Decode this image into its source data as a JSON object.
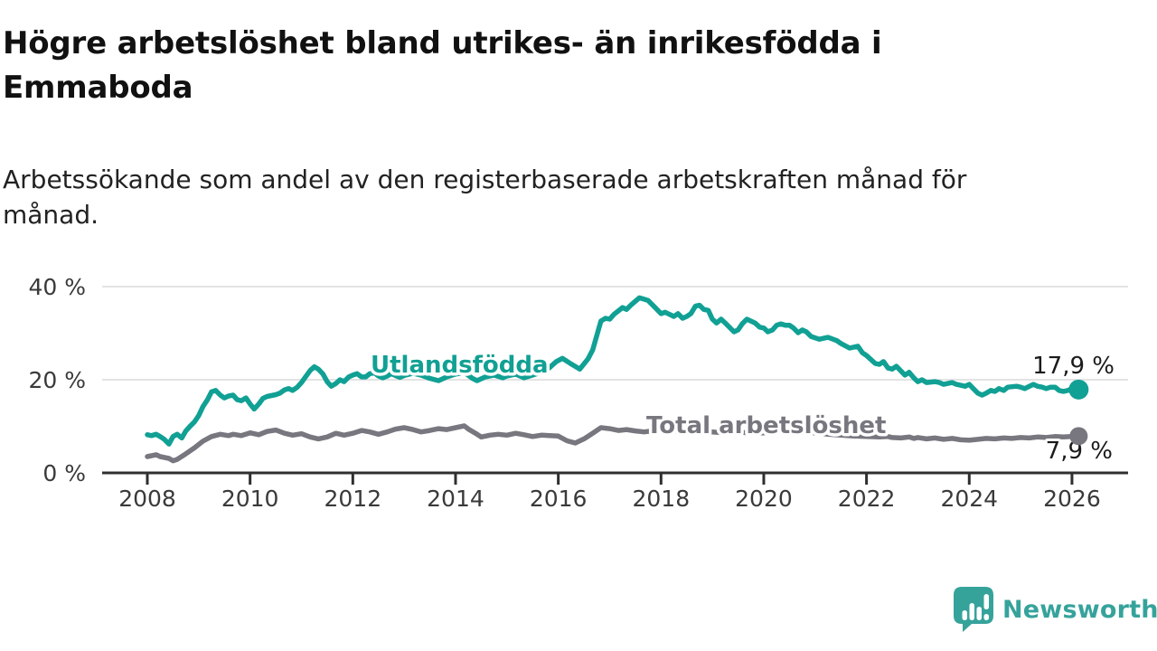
{
  "header": {
    "title_line1": "Högre arbetslöshet bland utrikes- än inrikesfödda i",
    "title_line2": "Emmaboda",
    "subtitle_line1": "Arbetssökande som andel av den registerbaserade arbetskraften månad för",
    "subtitle_line2": "månad."
  },
  "footer": {
    "brand": "Newsworthy",
    "logo_color": "#36A39B"
  },
  "chart_data": {
    "type": "line",
    "title": "Högre arbetslöshet bland utrikes- än inrikesfödda i Emmaboda",
    "subtitle": "Arbetssökande som andel av den registerbaserade arbetskraften månad för månad.",
    "grid": "horizontal",
    "legend_position": "inline-labels",
    "ylim": [
      0,
      44
    ],
    "xlim": [
      2007.1,
      2027.1
    ],
    "yticks": [
      0,
      20,
      40
    ],
    "ytick_labels": [
      "0 %",
      "20 %",
      "40 %"
    ],
    "xticks": [
      2008,
      2010,
      2012,
      2014,
      2016,
      2018,
      2020,
      2022,
      2024,
      2026
    ],
    "axis_color": "#2f2f2f",
    "gridline_color": "#e3e3e3",
    "tick_label_color": "#3a3a3a",
    "end_label_color": "#1b1b1b",
    "series": [
      {
        "name": "Utlandsfödda",
        "color": "#11A094",
        "end_label": "17,9 %",
        "end_value": 17.9,
        "points": [
          [
            2008.0,
            8.2
          ],
          [
            2008.08,
            8.0
          ],
          [
            2008.17,
            8.3
          ],
          [
            2008.25,
            7.8
          ],
          [
            2008.33,
            7.2
          ],
          [
            2008.42,
            6.2
          ],
          [
            2008.5,
            7.8
          ],
          [
            2008.58,
            8.3
          ],
          [
            2008.67,
            7.5
          ],
          [
            2008.75,
            9.0
          ],
          [
            2008.83,
            10.0
          ],
          [
            2008.92,
            11.0
          ],
          [
            2009.0,
            12.3
          ],
          [
            2009.08,
            14.2
          ],
          [
            2009.17,
            15.7
          ],
          [
            2009.25,
            17.4
          ],
          [
            2009.33,
            17.7
          ],
          [
            2009.42,
            16.7
          ],
          [
            2009.5,
            16.1
          ],
          [
            2009.58,
            16.5
          ],
          [
            2009.67,
            16.7
          ],
          [
            2009.75,
            15.7
          ],
          [
            2009.83,
            15.5
          ],
          [
            2009.92,
            16.1
          ],
          [
            2010.0,
            14.8
          ],
          [
            2010.08,
            13.7
          ],
          [
            2010.17,
            14.8
          ],
          [
            2010.25,
            16.0
          ],
          [
            2010.33,
            16.4
          ],
          [
            2010.5,
            16.8
          ],
          [
            2010.58,
            17.1
          ],
          [
            2010.67,
            17.8
          ],
          [
            2010.75,
            18.1
          ],
          [
            2010.83,
            17.7
          ],
          [
            2010.92,
            18.4
          ],
          [
            2011.0,
            19.4
          ],
          [
            2011.08,
            20.6
          ],
          [
            2011.17,
            22.0
          ],
          [
            2011.25,
            22.8
          ],
          [
            2011.33,
            22.3
          ],
          [
            2011.42,
            21.2
          ],
          [
            2011.5,
            19.6
          ],
          [
            2011.58,
            18.6
          ],
          [
            2011.67,
            19.2
          ],
          [
            2011.75,
            20.0
          ],
          [
            2011.83,
            19.6
          ],
          [
            2011.92,
            20.6
          ],
          [
            2012.0,
            21.0
          ],
          [
            2012.08,
            21.3
          ],
          [
            2012.17,
            20.6
          ],
          [
            2012.25,
            20.6
          ],
          [
            2012.33,
            21.3
          ],
          [
            2012.42,
            21.5
          ],
          [
            2012.5,
            20.8
          ],
          [
            2012.58,
            20.4
          ],
          [
            2012.67,
            20.8
          ],
          [
            2012.75,
            21.3
          ],
          [
            2012.83,
            20.9
          ],
          [
            2012.92,
            20.5
          ],
          [
            2013.0,
            20.9
          ],
          [
            2013.17,
            21.4
          ],
          [
            2013.33,
            21.0
          ],
          [
            2013.5,
            20.3
          ],
          [
            2013.67,
            19.8
          ],
          [
            2013.83,
            20.6
          ],
          [
            2014.0,
            21.2
          ],
          [
            2014.17,
            21.6
          ],
          [
            2014.33,
            20.3
          ],
          [
            2014.42,
            19.8
          ],
          [
            2014.58,
            20.6
          ],
          [
            2014.75,
            21.0
          ],
          [
            2014.92,
            20.4
          ],
          [
            2015.0,
            20.8
          ],
          [
            2015.17,
            21.2
          ],
          [
            2015.33,
            20.4
          ],
          [
            2015.5,
            21.0
          ],
          [
            2015.67,
            21.6
          ],
          [
            2015.83,
            22.6
          ],
          [
            2015.96,
            23.9
          ],
          [
            2016.08,
            24.6
          ],
          [
            2016.25,
            23.4
          ],
          [
            2016.42,
            22.3
          ],
          [
            2016.58,
            24.5
          ],
          [
            2016.67,
            26.4
          ],
          [
            2016.83,
            32.6
          ],
          [
            2016.92,
            33.2
          ],
          [
            2017.0,
            33.0
          ],
          [
            2017.08,
            34.0
          ],
          [
            2017.25,
            35.5
          ],
          [
            2017.33,
            35.1
          ],
          [
            2017.42,
            36.1
          ],
          [
            2017.58,
            37.6
          ],
          [
            2017.67,
            37.3
          ],
          [
            2017.75,
            37.0
          ],
          [
            2017.92,
            35.1
          ],
          [
            2018.0,
            34.2
          ],
          [
            2018.08,
            34.5
          ],
          [
            2018.25,
            33.6
          ],
          [
            2018.33,
            34.2
          ],
          [
            2018.42,
            33.2
          ],
          [
            2018.5,
            33.6
          ],
          [
            2018.58,
            34.2
          ],
          [
            2018.67,
            35.8
          ],
          [
            2018.75,
            36.0
          ],
          [
            2018.83,
            35.1
          ],
          [
            2018.92,
            34.9
          ],
          [
            2019.0,
            33.0
          ],
          [
            2019.08,
            32.2
          ],
          [
            2019.17,
            33.0
          ],
          [
            2019.25,
            32.2
          ],
          [
            2019.33,
            31.3
          ],
          [
            2019.42,
            30.3
          ],
          [
            2019.5,
            30.7
          ],
          [
            2019.58,
            32.0
          ],
          [
            2019.67,
            33.0
          ],
          [
            2019.75,
            32.6
          ],
          [
            2019.83,
            32.2
          ],
          [
            2019.92,
            31.3
          ],
          [
            2020.0,
            31.1
          ],
          [
            2020.08,
            30.3
          ],
          [
            2020.17,
            30.7
          ],
          [
            2020.25,
            31.7
          ],
          [
            2020.33,
            32.0
          ],
          [
            2020.42,
            31.7
          ],
          [
            2020.5,
            31.7
          ],
          [
            2020.58,
            31.1
          ],
          [
            2020.67,
            30.1
          ],
          [
            2020.75,
            30.7
          ],
          [
            2020.83,
            30.3
          ],
          [
            2020.92,
            29.3
          ],
          [
            2021.08,
            28.7
          ],
          [
            2021.25,
            29.1
          ],
          [
            2021.42,
            28.4
          ],
          [
            2021.5,
            27.8
          ],
          [
            2021.67,
            26.8
          ],
          [
            2021.83,
            27.2
          ],
          [
            2021.92,
            25.8
          ],
          [
            2022.0,
            25.2
          ],
          [
            2022.17,
            23.5
          ],
          [
            2022.25,
            23.3
          ],
          [
            2022.33,
            23.9
          ],
          [
            2022.42,
            22.5
          ],
          [
            2022.5,
            22.3
          ],
          [
            2022.58,
            22.9
          ],
          [
            2022.75,
            21.0
          ],
          [
            2022.83,
            21.6
          ],
          [
            2022.92,
            20.4
          ],
          [
            2023.0,
            19.6
          ],
          [
            2023.08,
            20.0
          ],
          [
            2023.17,
            19.4
          ],
          [
            2023.33,
            19.6
          ],
          [
            2023.42,
            19.4
          ],
          [
            2023.5,
            19.0
          ],
          [
            2023.67,
            19.4
          ],
          [
            2023.75,
            19.0
          ],
          [
            2023.92,
            18.6
          ],
          [
            2024.0,
            19.0
          ],
          [
            2024.08,
            18.1
          ],
          [
            2024.17,
            17.1
          ],
          [
            2024.25,
            16.7
          ],
          [
            2024.33,
            17.1
          ],
          [
            2024.42,
            17.7
          ],
          [
            2024.5,
            17.5
          ],
          [
            2024.58,
            18.1
          ],
          [
            2024.67,
            17.7
          ],
          [
            2024.75,
            18.4
          ],
          [
            2024.92,
            18.6
          ],
          [
            2025.0,
            18.4
          ],
          [
            2025.08,
            18.1
          ],
          [
            2025.17,
            18.6
          ],
          [
            2025.25,
            19.0
          ],
          [
            2025.33,
            18.6
          ],
          [
            2025.42,
            18.4
          ],
          [
            2025.5,
            18.1
          ],
          [
            2025.58,
            18.4
          ],
          [
            2025.67,
            18.4
          ],
          [
            2025.75,
            17.7
          ],
          [
            2025.83,
            17.5
          ],
          [
            2025.92,
            17.7
          ],
          [
            2026.0,
            18.1
          ],
          [
            2026.13,
            17.9
          ]
        ]
      },
      {
        "name": "Total arbetslöshet",
        "color": "#78767E",
        "end_label": "7,9 %",
        "end_value": 7.9,
        "points": [
          [
            2008.0,
            3.5
          ],
          [
            2008.17,
            3.9
          ],
          [
            2008.25,
            3.5
          ],
          [
            2008.42,
            3.1
          ],
          [
            2008.5,
            2.6
          ],
          [
            2008.58,
            2.9
          ],
          [
            2008.75,
            4.1
          ],
          [
            2008.92,
            5.4
          ],
          [
            2009.08,
            6.8
          ],
          [
            2009.25,
            7.8
          ],
          [
            2009.42,
            8.3
          ],
          [
            2009.58,
            8.0
          ],
          [
            2009.67,
            8.3
          ],
          [
            2009.83,
            8.0
          ],
          [
            2010.0,
            8.6
          ],
          [
            2010.17,
            8.2
          ],
          [
            2010.33,
            8.9
          ],
          [
            2010.5,
            9.2
          ],
          [
            2010.67,
            8.5
          ],
          [
            2010.83,
            8.1
          ],
          [
            2011.0,
            8.4
          ],
          [
            2011.17,
            7.7
          ],
          [
            2011.33,
            7.3
          ],
          [
            2011.5,
            7.7
          ],
          [
            2011.67,
            8.5
          ],
          [
            2011.83,
            8.1
          ],
          [
            2012.0,
            8.5
          ],
          [
            2012.17,
            9.1
          ],
          [
            2012.33,
            8.8
          ],
          [
            2012.5,
            8.3
          ],
          [
            2012.67,
            8.8
          ],
          [
            2012.83,
            9.4
          ],
          [
            2013.0,
            9.7
          ],
          [
            2013.17,
            9.3
          ],
          [
            2013.33,
            8.8
          ],
          [
            2013.5,
            9.1
          ],
          [
            2013.67,
            9.5
          ],
          [
            2013.83,
            9.3
          ],
          [
            2014.0,
            9.7
          ],
          [
            2014.17,
            10.1
          ],
          [
            2014.25,
            9.4
          ],
          [
            2014.42,
            8.3
          ],
          [
            2014.5,
            7.7
          ],
          [
            2014.67,
            8.1
          ],
          [
            2014.83,
            8.3
          ],
          [
            2015.0,
            8.1
          ],
          [
            2015.17,
            8.5
          ],
          [
            2015.33,
            8.2
          ],
          [
            2015.5,
            7.8
          ],
          [
            2015.67,
            8.1
          ],
          [
            2015.83,
            8.0
          ],
          [
            2016.0,
            7.9
          ],
          [
            2016.17,
            6.9
          ],
          [
            2016.33,
            6.4
          ],
          [
            2016.5,
            7.3
          ],
          [
            2016.67,
            8.5
          ],
          [
            2016.83,
            9.7
          ],
          [
            2017.0,
            9.5
          ],
          [
            2017.17,
            9.1
          ],
          [
            2017.33,
            9.3
          ],
          [
            2017.5,
            9.0
          ],
          [
            2017.67,
            8.8
          ],
          [
            2017.83,
            9.0
          ],
          [
            2018.0,
            9.2
          ],
          [
            2018.25,
            9.0
          ],
          [
            2018.5,
            9.3
          ],
          [
            2018.75,
            9.0
          ],
          [
            2019.0,
            8.8
          ],
          [
            2019.25,
            8.6
          ],
          [
            2019.5,
            8.8
          ],
          [
            2019.75,
            8.5
          ],
          [
            2020.0,
            8.6
          ],
          [
            2020.25,
            9.0
          ],
          [
            2020.5,
            9.2
          ],
          [
            2020.75,
            8.8
          ],
          [
            2021.0,
            8.6
          ],
          [
            2021.25,
            8.3
          ],
          [
            2021.5,
            8.1
          ],
          [
            2021.75,
            7.9
          ],
          [
            2022.0,
            7.8
          ],
          [
            2022.25,
            7.7
          ],
          [
            2022.42,
            7.8
          ],
          [
            2022.5,
            7.6
          ],
          [
            2022.67,
            7.5
          ],
          [
            2022.83,
            7.7
          ],
          [
            2022.92,
            7.4
          ],
          [
            2023.0,
            7.6
          ],
          [
            2023.17,
            7.3
          ],
          [
            2023.33,
            7.5
          ],
          [
            2023.5,
            7.2
          ],
          [
            2023.67,
            7.4
          ],
          [
            2023.83,
            7.1
          ],
          [
            2024.0,
            7.0
          ],
          [
            2024.17,
            7.2
          ],
          [
            2024.33,
            7.4
          ],
          [
            2024.5,
            7.3
          ],
          [
            2024.67,
            7.5
          ],
          [
            2024.83,
            7.4
          ],
          [
            2025.0,
            7.6
          ],
          [
            2025.17,
            7.5
          ],
          [
            2025.33,
            7.7
          ],
          [
            2025.5,
            7.6
          ],
          [
            2025.67,
            7.8
          ],
          [
            2025.83,
            7.7
          ],
          [
            2026.0,
            7.8
          ],
          [
            2026.13,
            7.9
          ]
        ]
      }
    ]
  }
}
